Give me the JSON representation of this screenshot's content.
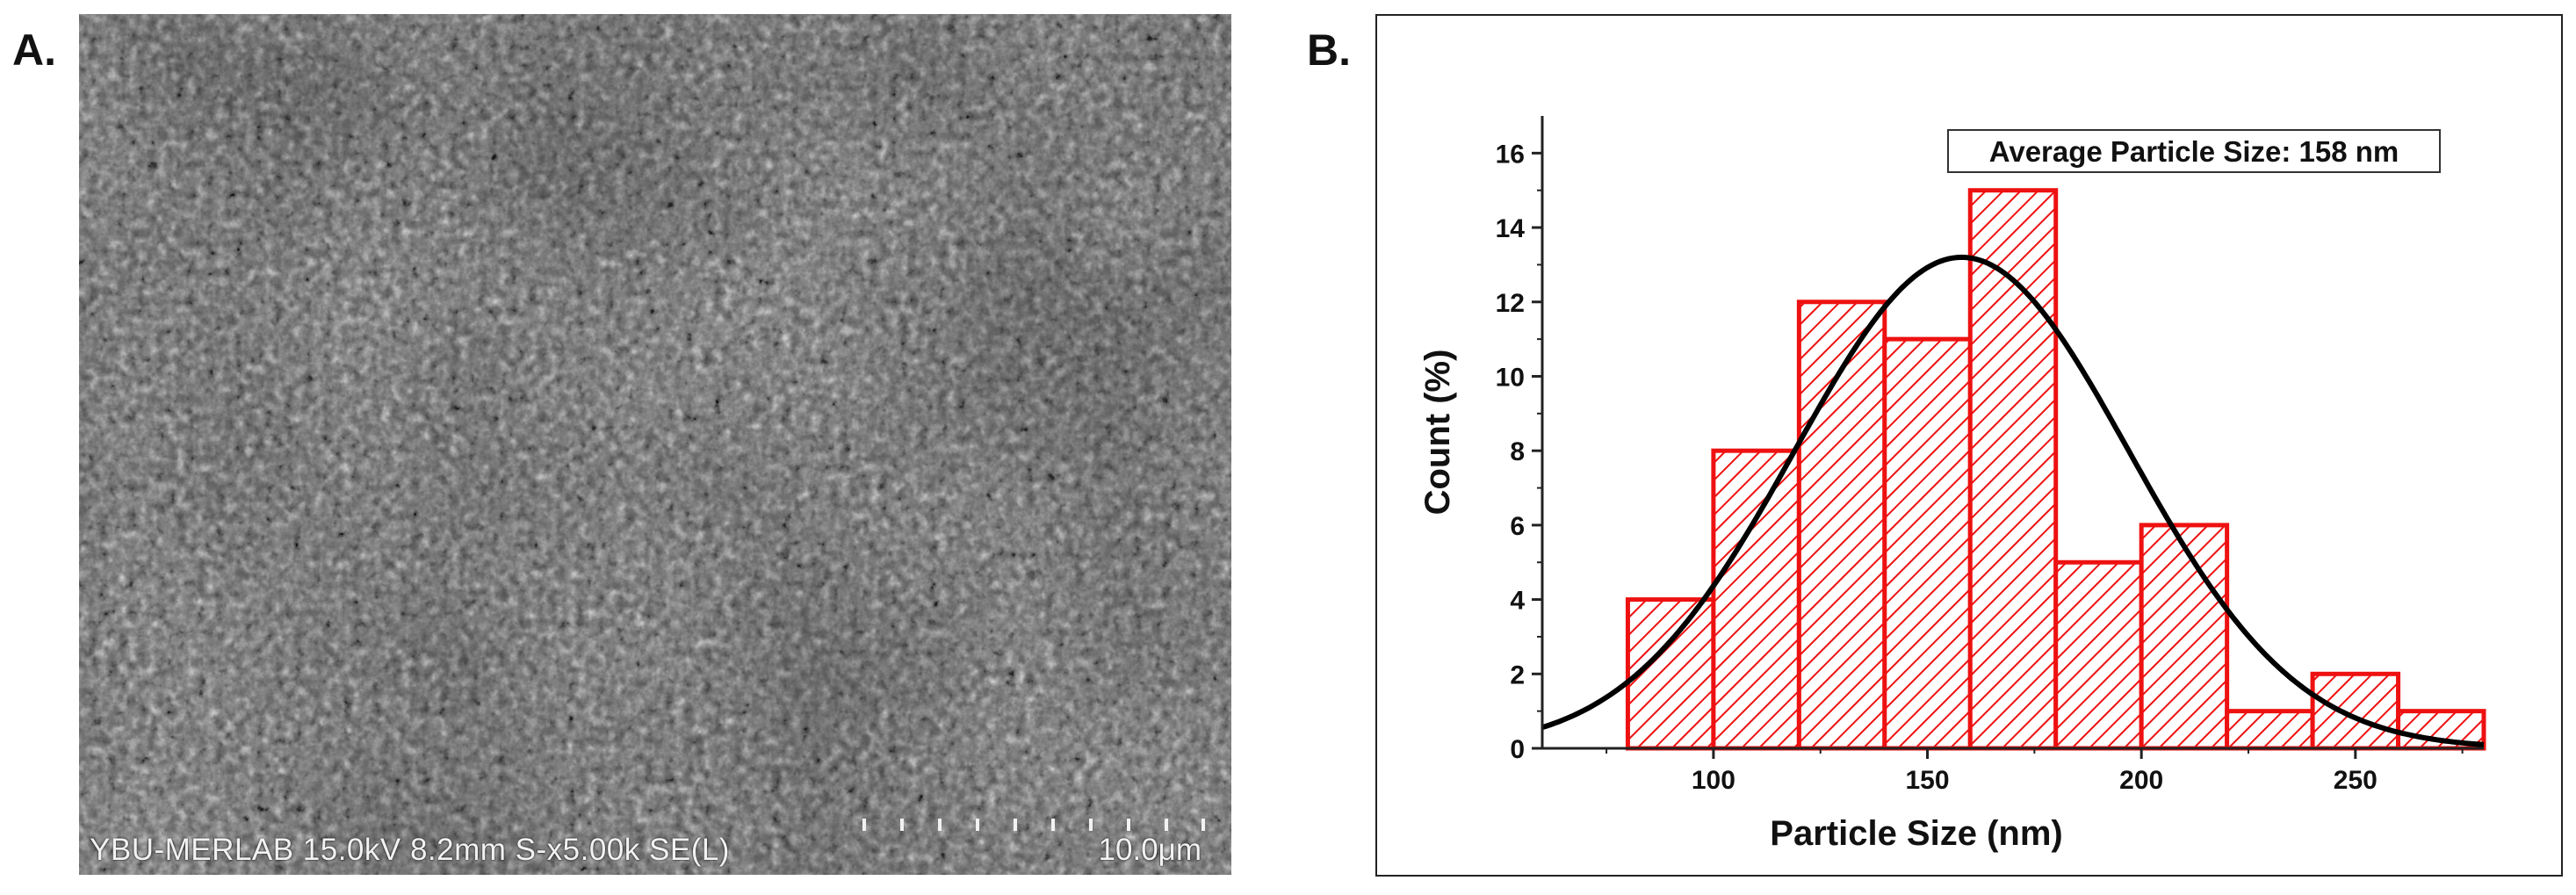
{
  "panels": {
    "a_label": "A.",
    "b_label": "B."
  },
  "sem": {
    "caption": "YBU-MERLAB 15.0kV 8.2mm S-x5.00k SE(L)",
    "scale_label": "10.0μm"
  },
  "chart_data": {
    "type": "bar",
    "subtype": "histogram-with-fit",
    "xlabel": "Particle Size (nm)",
    "ylabel": "Count (%)",
    "xlim": [
      60,
      280
    ],
    "ylim": [
      0,
      17
    ],
    "xticks": [
      100,
      150,
      200,
      250
    ],
    "yticks": [
      0,
      2,
      4,
      6,
      8,
      10,
      12,
      14,
      16
    ],
    "grid": false,
    "bins": [
      {
        "x0": 80,
        "x1": 100,
        "value": 4
      },
      {
        "x0": 100,
        "x1": 120,
        "value": 8
      },
      {
        "x0": 120,
        "x1": 140,
        "value": 12
      },
      {
        "x0": 140,
        "x1": 160,
        "value": 11
      },
      {
        "x0": 160,
        "x1": 180,
        "value": 15
      },
      {
        "x0": 180,
        "x1": 200,
        "value": 5
      },
      {
        "x0": 200,
        "x1": 220,
        "value": 6
      },
      {
        "x0": 220,
        "x1": 240,
        "value": 1
      },
      {
        "x0": 240,
        "x1": 260,
        "value": 2
      },
      {
        "x0": 260,
        "x1": 280,
        "value": 1
      }
    ],
    "fit": {
      "type": "normal",
      "mean": 158,
      "sd": 39,
      "peak": 13.2
    },
    "annotation": "Average Particle Size: 158 nm",
    "colors": {
      "bar": "#ee1111",
      "fit": "#000000"
    }
  }
}
